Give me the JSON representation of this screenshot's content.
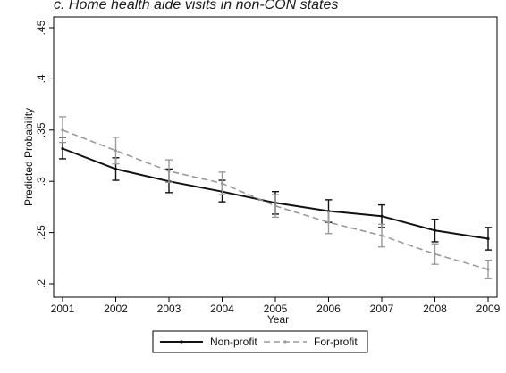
{
  "chart_data": {
    "type": "line",
    "title": "c. Home health aide visits in non-CON states",
    "xlabel": "Year",
    "ylabel": "Predicted Probability",
    "x": [
      2001,
      2002,
      2003,
      2004,
      2005,
      2006,
      2007,
      2008,
      2009
    ],
    "x_ticks": [
      "2001",
      "2002",
      "2003",
      "2004",
      "2005",
      "2006",
      "2007",
      "2008",
      "2009"
    ],
    "y_ticks": [
      ".2",
      ".25",
      ".3",
      ".35",
      ".4",
      ".45"
    ],
    "ylim": [
      0.2,
      0.45
    ],
    "grid": false,
    "legend_position": "bottom",
    "series": [
      {
        "name": "Non-profit",
        "color": "#111111",
        "style": "solid",
        "values": [
          0.332,
          0.312,
          0.3,
          0.29,
          0.279,
          0.271,
          0.266,
          0.252,
          0.244
        ],
        "ci_low": [
          0.322,
          0.301,
          0.289,
          0.28,
          0.268,
          0.26,
          0.255,
          0.241,
          0.233
        ],
        "ci_high": [
          0.343,
          0.323,
          0.312,
          0.301,
          0.29,
          0.282,
          0.277,
          0.263,
          0.255
        ]
      },
      {
        "name": "For-profit",
        "color": "#9a9a9a",
        "style": "dashed",
        "values": [
          0.35,
          0.33,
          0.31,
          0.298,
          0.276,
          0.26,
          0.247,
          0.229,
          0.214
        ],
        "ci_low": [
          0.338,
          0.317,
          0.299,
          0.287,
          0.265,
          0.249,
          0.236,
          0.219,
          0.205
        ],
        "ci_high": [
          0.363,
          0.343,
          0.321,
          0.309,
          0.287,
          0.271,
          0.258,
          0.239,
          0.223
        ]
      }
    ]
  }
}
